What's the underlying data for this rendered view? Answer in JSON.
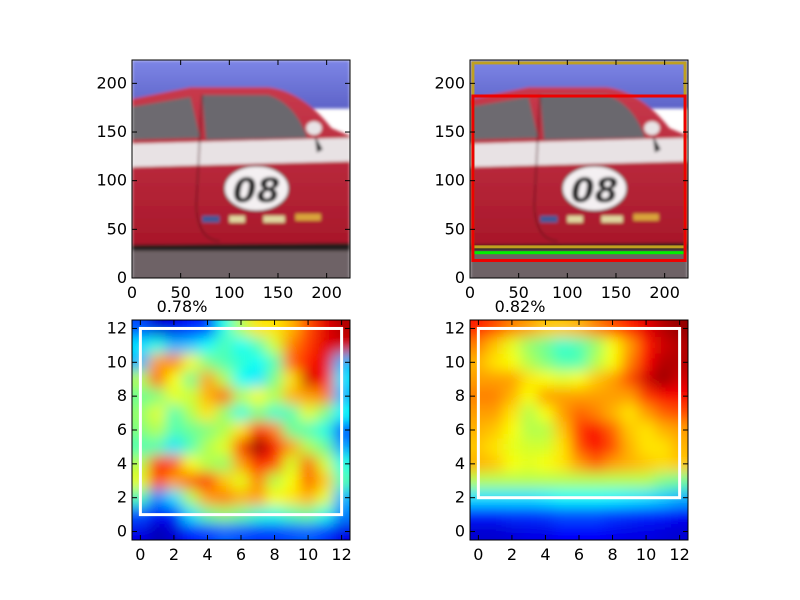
{
  "figure": {
    "background": "#ffffff"
  },
  "chart_data": [
    {
      "type": "image",
      "panel": "top-left",
      "content": "photo of red car side view with number 08",
      "title": "",
      "xlim": [
        0,
        224
      ],
      "ylim": [
        224,
        0
      ],
      "xticks": [
        "0",
        "50",
        "100",
        "150",
        "200"
      ],
      "yticks": [
        "0",
        "50",
        "100",
        "150",
        "200"
      ],
      "car_number": "08",
      "boxes": []
    },
    {
      "type": "image",
      "panel": "top-right",
      "content": "same car photo with overlaid bounding boxes",
      "title": "",
      "xlim": [
        0,
        224
      ],
      "ylim": [
        224,
        0
      ],
      "xticks": [
        "0",
        "50",
        "100",
        "150",
        "200"
      ],
      "yticks": [
        "0",
        "50",
        "100",
        "150",
        "200"
      ],
      "car_number": "08",
      "boxes": [
        {
          "color": "#bfa020",
          "x0": 3,
          "y0": 3,
          "x1": 221,
          "y1": 192
        },
        {
          "color": "#00ee00",
          "x0": 3,
          "y0": 37,
          "x1": 221,
          "y1": 198
        },
        {
          "color": "#ee0000",
          "x0": 3,
          "y0": 37,
          "x1": 221,
          "y1": 206
        }
      ]
    },
    {
      "type": "heatmap",
      "panel": "bottom-left",
      "title": "0.78%",
      "colormap": "jet",
      "xlim": [
        -0.5,
        12.5
      ],
      "ylim": [
        12.5,
        -0.5
      ],
      "xticks": [
        "0",
        "2",
        "4",
        "6",
        "8",
        "10",
        "12"
      ],
      "yticks": [
        "0",
        "2",
        "4",
        "6",
        "8",
        "10",
        "12"
      ],
      "box": {
        "color": "#ffffff",
        "x0": 0,
        "y0": 0,
        "x1": 12,
        "y1": 11
      },
      "values": [
        [
          0.2,
          0.08,
          0.1,
          0.15,
          0.18,
          0.4,
          0.55,
          0.65,
          0.65,
          0.7,
          0.8,
          0.9,
          0.95
        ],
        [
          0.35,
          0.4,
          0.3,
          0.32,
          0.38,
          0.45,
          0.38,
          0.45,
          0.58,
          0.75,
          0.82,
          0.9,
          0.92
        ],
        [
          0.3,
          0.72,
          0.75,
          0.62,
          0.5,
          0.45,
          0.42,
          0.38,
          0.45,
          0.78,
          0.85,
          0.9,
          0.3
        ],
        [
          0.55,
          0.78,
          0.62,
          0.48,
          0.72,
          0.55,
          0.38,
          0.35,
          0.5,
          0.65,
          0.92,
          0.88,
          0.35
        ],
        [
          0.48,
          0.5,
          0.6,
          0.58,
          0.7,
          0.78,
          0.55,
          0.62,
          0.55,
          0.7,
          0.72,
          0.75,
          0.3
        ],
        [
          0.52,
          0.6,
          0.45,
          0.55,
          0.65,
          0.52,
          0.4,
          0.5,
          0.42,
          0.45,
          0.6,
          0.5,
          0.38
        ],
        [
          0.5,
          0.55,
          0.45,
          0.48,
          0.5,
          0.55,
          0.65,
          0.85,
          0.75,
          0.48,
          0.45,
          0.4,
          0.2
        ],
        [
          0.45,
          0.45,
          0.35,
          0.45,
          0.55,
          0.6,
          0.82,
          0.98,
          0.88,
          0.72,
          0.55,
          0.48,
          0.28
        ],
        [
          0.55,
          0.85,
          0.8,
          0.62,
          0.55,
          0.52,
          0.72,
          0.85,
          0.8,
          0.58,
          0.78,
          0.58,
          0.4
        ],
        [
          0.6,
          0.82,
          0.72,
          0.78,
          0.85,
          0.68,
          0.6,
          0.75,
          0.55,
          0.62,
          0.78,
          0.68,
          0.45
        ],
        [
          0.45,
          0.25,
          0.35,
          0.55,
          0.72,
          0.75,
          0.7,
          0.72,
          0.62,
          0.65,
          0.7,
          0.6,
          0.3
        ],
        [
          0.2,
          0.12,
          0.15,
          0.35,
          0.48,
          0.52,
          0.48,
          0.42,
          0.4,
          0.45,
          0.48,
          0.4,
          0.25
        ],
        [
          0.1,
          0.05,
          0.08,
          0.15,
          0.18,
          0.22,
          0.2,
          0.18,
          0.18,
          0.2,
          0.22,
          0.18,
          0.1
        ]
      ]
    },
    {
      "type": "heatmap",
      "panel": "bottom-right",
      "title": "0.82%",
      "colormap": "jet",
      "xlim": [
        -0.5,
        12.5
      ],
      "ylim": [
        12.5,
        -0.5
      ],
      "xticks": [
        "0",
        "2",
        "4",
        "6",
        "8",
        "10",
        "12"
      ],
      "yticks": [
        "0",
        "2",
        "4",
        "6",
        "8",
        "10",
        "12"
      ],
      "box": {
        "color": "#ffffff",
        "x0": 0,
        "y0": 0,
        "x1": 12,
        "y1": 10
      },
      "values": [
        [
          0.85,
          0.8,
          0.75,
          0.72,
          0.68,
          0.68,
          0.7,
          0.75,
          0.8,
          0.85,
          0.9,
          0.95,
          0.98
        ],
        [
          0.75,
          0.68,
          0.6,
          0.52,
          0.48,
          0.42,
          0.45,
          0.52,
          0.62,
          0.72,
          0.85,
          0.92,
          0.95
        ],
        [
          0.7,
          0.65,
          0.62,
          0.55,
          0.5,
          0.45,
          0.45,
          0.55,
          0.62,
          0.75,
          0.88,
          0.95,
          0.95
        ],
        [
          0.72,
          0.72,
          0.72,
          0.65,
          0.62,
          0.6,
          0.62,
          0.68,
          0.72,
          0.8,
          0.92,
          0.98,
          0.92
        ],
        [
          0.75,
          0.75,
          0.7,
          0.62,
          0.72,
          0.72,
          0.72,
          0.72,
          0.72,
          0.72,
          0.82,
          0.88,
          0.88
        ],
        [
          0.72,
          0.72,
          0.65,
          0.55,
          0.62,
          0.72,
          0.78,
          0.75,
          0.7,
          0.65,
          0.72,
          0.78,
          0.8
        ],
        [
          0.7,
          0.68,
          0.62,
          0.55,
          0.55,
          0.68,
          0.82,
          0.88,
          0.78,
          0.68,
          0.65,
          0.7,
          0.72
        ],
        [
          0.68,
          0.65,
          0.6,
          0.58,
          0.58,
          0.65,
          0.8,
          0.88,
          0.8,
          0.7,
          0.65,
          0.65,
          0.7
        ],
        [
          0.7,
          0.68,
          0.62,
          0.6,
          0.62,
          0.65,
          0.72,
          0.78,
          0.72,
          0.7,
          0.68,
          0.66,
          0.68
        ],
        [
          0.55,
          0.55,
          0.55,
          0.55,
          0.55,
          0.55,
          0.55,
          0.55,
          0.55,
          0.55,
          0.55,
          0.5,
          0.48
        ],
        [
          0.35,
          0.35,
          0.35,
          0.35,
          0.36,
          0.38,
          0.38,
          0.38,
          0.37,
          0.36,
          0.35,
          0.33,
          0.3
        ],
        [
          0.15,
          0.15,
          0.17,
          0.17,
          0.18,
          0.2,
          0.2,
          0.2,
          0.18,
          0.17,
          0.16,
          0.15,
          0.12
        ],
        [
          0.08,
          0.08,
          0.09,
          0.1,
          0.1,
          0.12,
          0.12,
          0.12,
          0.11,
          0.1,
          0.1,
          0.09,
          0.08
        ]
      ]
    }
  ]
}
